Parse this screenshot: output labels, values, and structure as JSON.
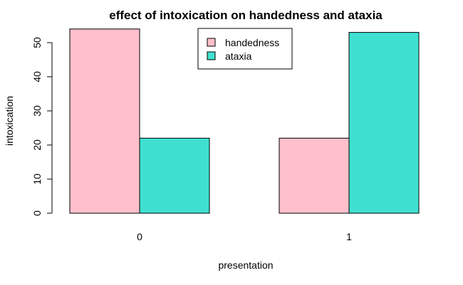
{
  "chart_data": {
    "type": "bar",
    "title": "effect of intoxication on handedness and ataxia",
    "xlabel": "presentation",
    "ylabel": "intoxication",
    "categories": [
      "0",
      "1"
    ],
    "series": [
      {
        "name": "handedness",
        "values": [
          54,
          22
        ],
        "color": "#FFC0CB"
      },
      {
        "name": "ataxia",
        "values": [
          22,
          53
        ],
        "color": "#40E0D0"
      }
    ],
    "ylim": [
      0,
      54
    ],
    "yticks": [
      0,
      10,
      20,
      30,
      40,
      50
    ],
    "legend_position": "top-center",
    "grid": false
  }
}
